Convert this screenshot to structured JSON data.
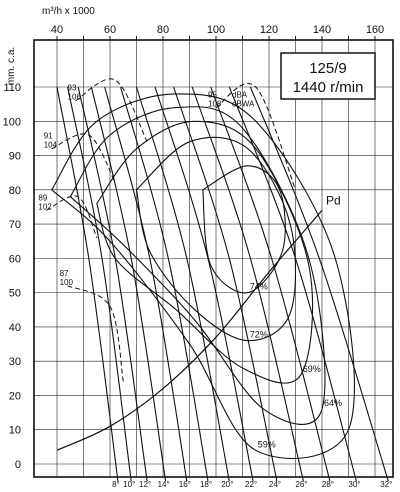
{
  "chart_data": {
    "type": "line",
    "title": "125/9",
    "subtitle": "1440 r/min",
    "xlabel": "m³/h x 1000",
    "ylabel": "mm. c.a.",
    "x_ticks": [
      40,
      60,
      80,
      100,
      120,
      140,
      160
    ],
    "y_ticks": [
      0,
      10,
      20,
      30,
      40,
      50,
      60,
      70,
      80,
      90,
      100,
      110
    ],
    "xlim": [
      32,
      170
    ],
    "ylim": [
      -5,
      120
    ],
    "grid": true,
    "series": [
      {
        "name": "8°",
        "x": [
          40,
          52,
          63
        ],
        "y": [
          110,
          60,
          -5
        ]
      },
      {
        "name": "10°",
        "x": [
          44,
          57,
          68
        ],
        "y": [
          110,
          60,
          -5
        ]
      },
      {
        "name": "12°",
        "x": [
          48,
          62,
          74
        ],
        "y": [
          110,
          60,
          -5
        ]
      },
      {
        "name": "14°",
        "x": [
          53,
          68,
          81
        ],
        "y": [
          110,
          60,
          -5
        ]
      },
      {
        "name": "16°",
        "x": [
          58,
          75,
          89
        ],
        "y": [
          110,
          60,
          -5
        ]
      },
      {
        "name": "18°",
        "x": [
          64,
          82,
          97
        ],
        "y": [
          110,
          60,
          -5
        ]
      },
      {
        "name": "20°",
        "x": [
          70,
          89,
          105
        ],
        "y": [
          110,
          60,
          -5
        ]
      },
      {
        "name": "22°",
        "x": [
          77,
          97,
          114
        ],
        "y": [
          110,
          60,
          -5
        ]
      },
      {
        "name": "24°",
        "x": [
          84,
          105,
          123
        ],
        "y": [
          110,
          60,
          -5
        ]
      },
      {
        "name": "26°",
        "x": [
          91,
          113,
          133
        ],
        "y": [
          110,
          60,
          -5
        ]
      },
      {
        "name": "28°",
        "x": [
          98,
          121,
          143
        ],
        "y": [
          110,
          60,
          -5
        ]
      },
      {
        "name": "30°",
        "x": [
          105,
          130,
          153
        ],
        "y": [
          110,
          60,
          -5
        ]
      },
      {
        "name": "32°",
        "x": [
          113,
          139,
          165
        ],
        "y": [
          110,
          60,
          -5
        ]
      },
      {
        "name": "Pd",
        "x": [
          40,
          60,
          80,
          100,
          120,
          140
        ],
        "y": [
          4,
          11,
          22,
          37,
          56,
          74
        ]
      }
    ],
    "efficiency_curves": [
      {
        "label": "59%",
        "x": [
          38,
          55,
          85,
          115,
          145,
          150,
          115,
          90,
          60,
          38
        ],
        "y": [
          80,
          100,
          108,
          100,
          60,
          10,
          4,
          35,
          65,
          80
        ]
      },
      {
        "label": "64%",
        "x": [
          45,
          60,
          85,
          110,
          135,
          140,
          118,
          92,
          65,
          45
        ],
        "y": [
          78,
          96,
          104,
          98,
          60,
          16,
          16,
          42,
          64,
          78
        ]
      },
      {
        "label": "69%",
        "x": [
          55,
          70,
          92,
          115,
          135,
          132,
          110,
          85,
          62,
          55
        ],
        "y": [
          76,
          92,
          100,
          92,
          58,
          26,
          28,
          45,
          60,
          76
        ]
      },
      {
        "label": "72%",
        "x": [
          70,
          90,
          112,
          128,
          128,
          112,
          92,
          75,
          70
        ],
        "y": [
          80,
          94,
          92,
          70,
          44,
          36,
          45,
          62,
          80
        ]
      },
      {
        "label": "74%",
        "x": [
          95,
          112,
          124,
          125,
          112,
          98,
          95
        ],
        "y": [
          80,
          87,
          80,
          62,
          50,
          58,
          80
        ]
      }
    ],
    "noise_curves": [
      {
        "label": [
          "93",
          "106"
        ],
        "x": [
          47,
          62,
          74
        ],
        "y": [
          106,
          112,
          94
        ]
      },
      {
        "label": [
          "95",
          "108"
        ],
        "x": [
          100,
          115,
          130
        ],
        "y": [
          104,
          110,
          80
        ]
      },
      {
        "label": [
          "91",
          "104"
        ],
        "x": [
          38,
          52,
          62
        ],
        "y": [
          92,
          96,
          82
        ]
      },
      {
        "label": [
          "89",
          "102"
        ],
        "x": [
          36,
          48,
          55
        ],
        "y": [
          74,
          78,
          66
        ]
      },
      {
        "label": [
          "87",
          "100"
        ],
        "x": [
          44,
          60,
          65
        ],
        "y": [
          52,
          46,
          24
        ]
      }
    ],
    "noise_units": [
      "dBA",
      "dBWA"
    ],
    "max_pressure_label": "Pd"
  }
}
